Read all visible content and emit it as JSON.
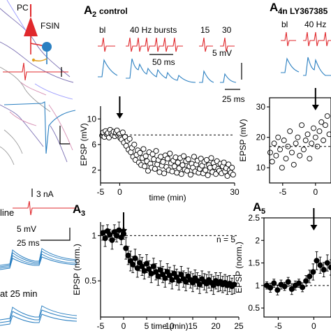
{
  "colors": {
    "red": "#e0282c",
    "blue": "#2a7fc1",
    "neuron_purple": "#7a6fb3",
    "neuron_pink": "#d68fb3",
    "neuron_gray": "#9a9a9a"
  },
  "left_panel": {
    "pc_label": "PC",
    "fsin_label": "FSIN",
    "scale_current": "3 nA",
    "baseline_label": "line",
    "scale_v": "5 mV",
    "scale_t": "25 ms",
    "at25_label": "at 25 min"
  },
  "panel_a2": {
    "letter": "A",
    "sub": "2",
    "title": "control",
    "trace_labels": [
      "bl",
      "40 Hz bursts",
      "15",
      "30"
    ],
    "scale_t_top": "50 ms",
    "scale_v": "5 mV",
    "scale_t_bottom": "25 ms"
  },
  "panel_a3": {
    "letter": "A",
    "sub": "3",
    "n_label": "n = 5"
  },
  "panel_a4": {
    "letter": "A",
    "sub": "4",
    "title": "in LY367385",
    "trace_labels": [
      "bl",
      "40 Hz"
    ]
  },
  "panel_a5": {
    "letter": "A",
    "sub": "5"
  },
  "chart_data": [
    {
      "type": "scatter",
      "panel": "A2",
      "xlabel": "time (min)",
      "ylabel": "EPSP (mV)",
      "xlim": [
        -5,
        30
      ],
      "ylim": [
        0,
        12
      ],
      "xticks": [
        -5,
        0,
        30
      ],
      "yticks": [
        2,
        6,
        10
      ],
      "dashed_baseline": 7.5,
      "arrow_at": 0,
      "x": [
        -4.6,
        -4.3,
        -4.0,
        -3.7,
        -3.4,
        -3.1,
        -2.8,
        -2.5,
        -2.2,
        -1.9,
        -1.6,
        -1.3,
        -1.0,
        -0.7,
        -0.4,
        -0.1,
        0.2,
        0.5,
        0.8,
        1.1,
        1.4,
        1.7,
        2.0,
        2.3,
        2.6,
        2.9,
        3.2,
        3.5,
        3.8,
        4.1,
        4.4,
        4.7,
        5.0,
        5.3,
        5.6,
        5.9,
        6.2,
        6.5,
        6.8,
        7.1,
        7.4,
        7.7,
        8.0,
        8.3,
        8.6,
        8.9,
        9.2,
        9.5,
        9.8,
        10.1,
        10.4,
        10.7,
        11.0,
        11.3,
        11.6,
        11.9,
        12.2,
        12.5,
        12.8,
        13.1,
        13.4,
        13.7,
        14.0,
        14.3,
        14.6,
        14.9,
        15.2,
        15.5,
        15.8,
        16.1,
        16.4,
        16.7,
        17.0,
        17.3,
        17.6,
        17.9,
        18.2,
        18.5,
        18.8,
        19.1,
        19.4,
        19.7,
        20.0,
        20.3,
        20.6,
        20.9,
        21.2,
        21.5,
        21.8,
        22.1,
        22.4,
        22.7,
        23.0,
        23.3,
        23.6,
        23.9,
        24.2,
        24.5,
        24.8,
        25.1,
        25.4,
        25.7,
        26.0,
        26.3,
        26.6,
        26.9,
        27.2,
        27.5,
        27.8,
        28.1,
        28.4,
        28.7,
        29.0,
        29.3,
        29.6
      ],
      "y": [
        7.4,
        7.9,
        7.2,
        8.1,
        7.6,
        7.8,
        7.1,
        8.3,
        7.7,
        7.5,
        8.0,
        7.3,
        7.9,
        8.2,
        7.4,
        7.6,
        7.0,
        6.8,
        7.9,
        6.3,
        7.2,
        5.8,
        6.6,
        5.2,
        6.9,
        4.8,
        5.5,
        4.1,
        6.0,
        3.6,
        4.4,
        5.1,
        3.2,
        4.7,
        2.8,
        3.9,
        5.3,
        2.6,
        4.2,
        3.4,
        1.9,
        4.8,
        3.0,
        2.4,
        4.5,
        3.7,
        2.2,
        5.0,
        2.9,
        3.6,
        1.7,
        4.1,
        2.7,
        3.3,
        1.5,
        4.3,
        2.5,
        3.8,
        2.0,
        4.6,
        3.1,
        1.8,
        3.5,
        2.6,
        4.0,
        1.6,
        3.2,
        2.3,
        3.9,
        1.4,
        2.8,
        4.2,
        2.1,
        3.4,
        1.9,
        3.7,
        2.6,
        1.3,
        3.0,
        2.4,
        4.1,
        1.8,
        2.9,
        3.5,
        1.6,
        2.2,
        3.8,
        2.7,
        1.5,
        3.3,
        2.0,
        3.6,
        1.2,
        2.8,
        2.4,
        3.9,
        1.7,
        3.1,
        2.5,
        1.4,
        3.4,
        2.2,
        1.9,
        3.0,
        1.5,
        2.6,
        3.2,
        1.8,
        2.3,
        1.1,
        2.9,
        2.0,
        1.6,
        2.4,
        1.3
      ]
    },
    {
      "type": "scatter",
      "panel": "A3",
      "xlabel": "time (min)",
      "ylabel": "EPSP (norm.)",
      "xlim": [
        -5,
        25
      ],
      "ylim": [
        0.1,
        1.15
      ],
      "xticks": [
        -5,
        0,
        5,
        10,
        15,
        20,
        25
      ],
      "yticks": [
        0.5,
        1.0
      ],
      "dashed_baseline": 1.0,
      "arrow_at": 0,
      "x": [
        -4.5,
        -4.0,
        -3.5,
        -3.0,
        -2.5,
        -2.0,
        -1.5,
        -1.0,
        -0.5,
        0.0,
        0.5,
        1.0,
        1.5,
        2.0,
        2.5,
        3.0,
        3.5,
        4.0,
        4.5,
        5.0,
        5.5,
        6.0,
        6.5,
        7.0,
        7.5,
        8.0,
        8.5,
        9.0,
        9.5,
        10.0,
        10.5,
        11.0,
        11.5,
        12.0,
        12.5,
        13.0,
        13.5,
        14.0,
        14.5,
        15.0,
        15.5,
        16.0,
        16.5,
        17.0,
        17.5,
        18.0,
        18.5,
        19.0,
        19.5,
        20.0,
        20.5,
        21.0,
        21.5,
        22.0,
        22.5,
        23.0,
        23.5,
        24.0
      ],
      "y": [
        1.03,
        0.97,
        1.05,
        1.01,
        0.95,
        1.04,
        1.0,
        1.06,
        0.98,
        1.02,
        0.86,
        0.78,
        0.72,
        0.68,
        0.75,
        0.64,
        0.7,
        0.66,
        0.61,
        0.69,
        0.63,
        0.58,
        0.66,
        0.6,
        0.55,
        0.62,
        0.57,
        0.53,
        0.6,
        0.56,
        0.51,
        0.58,
        0.54,
        0.5,
        0.57,
        0.52,
        0.49,
        0.55,
        0.51,
        0.48,
        0.53,
        0.5,
        0.46,
        0.52,
        0.49,
        0.47,
        0.51,
        0.48,
        0.45,
        0.5,
        0.47,
        0.49,
        0.46,
        0.48,
        0.45,
        0.47,
        0.44,
        0.46
      ],
      "err": [
        0.08,
        0.09,
        0.07,
        0.06,
        0.1,
        0.08,
        0.07,
        0.09,
        0.08,
        0.06,
        0.12,
        0.1,
        0.11,
        0.09,
        0.1,
        0.1,
        0.09,
        0.1,
        0.09,
        0.1,
        0.09,
        0.1,
        0.09,
        0.09,
        0.1,
        0.1,
        0.09,
        0.1,
        0.09,
        0.09,
        0.1,
        0.09,
        0.09,
        0.1,
        0.09,
        0.09,
        0.1,
        0.09,
        0.09,
        0.1,
        0.09,
        0.09,
        0.1,
        0.09,
        0.09,
        0.1,
        0.09,
        0.09,
        0.1,
        0.09,
        0.09,
        0.1,
        0.09,
        0.09,
        0.1,
        0.09,
        0.09,
        0.1
      ]
    },
    {
      "type": "scatter",
      "panel": "A4",
      "ylabel": "EPSP (mV)",
      "xlim": [
        -7,
        3
      ],
      "ylim": [
        5,
        33
      ],
      "xticks": [
        -5,
        0
      ],
      "yticks": [
        10,
        20,
        30
      ],
      "dashed_baseline": 17,
      "arrow_at": 0,
      "x": [
        -6.9,
        -6.6,
        -6.3,
        -6.0,
        -5.7,
        -5.4,
        -5.1,
        -4.8,
        -4.5,
        -4.2,
        -3.9,
        -3.6,
        -3.3,
        -3.0,
        -2.7,
        -2.4,
        -2.1,
        -1.8,
        -1.5,
        -1.2,
        -0.9,
        -0.6,
        -0.3,
        0.0,
        0.3,
        0.6,
        0.9,
        1.2,
        1.5,
        1.8,
        2.1,
        2.4,
        2.7
      ],
      "y": [
        15,
        12,
        18,
        14,
        20,
        16,
        10,
        19,
        13,
        17,
        22,
        15,
        11,
        18,
        20,
        14,
        24,
        16,
        19,
        21,
        13,
        18,
        23,
        20,
        17,
        22,
        25,
        19,
        24,
        27,
        21,
        26,
        28
      ]
    },
    {
      "type": "scatter",
      "panel": "A5",
      "ylabel": "EPSP (norm.)",
      "xlim": [
        -7,
        3
      ],
      "ylim": [
        0.3,
        2.5
      ],
      "xticks": [
        -5,
        0
      ],
      "yticks": [
        0.5,
        1.0,
        1.5,
        2.0,
        2.5
      ],
      "dashed_baseline": 1.0,
      "arrow_at": 0,
      "x": [
        -6.6,
        -6.1,
        -5.6,
        -5.1,
        -4.6,
        -4.1,
        -3.6,
        -3.1,
        -2.6,
        -2.1,
        -1.6,
        -1.1,
        -0.6,
        -0.1,
        0.4,
        0.9,
        1.4,
        1.9,
        2.4
      ],
      "y": [
        1.0,
        0.95,
        1.05,
        0.9,
        1.02,
        0.98,
        1.08,
        0.92,
        1.0,
        1.05,
        0.96,
        1.1,
        1.2,
        1.3,
        1.55,
        1.45,
        1.35,
        1.5,
        1.4
      ],
      "err": [
        0.08,
        0.1,
        0.09,
        0.11,
        0.1,
        0.09,
        0.1,
        0.12,
        0.1,
        0.09,
        0.1,
        0.12,
        0.14,
        0.18,
        0.2,
        0.18,
        0.16,
        0.18,
        0.17
      ]
    }
  ]
}
